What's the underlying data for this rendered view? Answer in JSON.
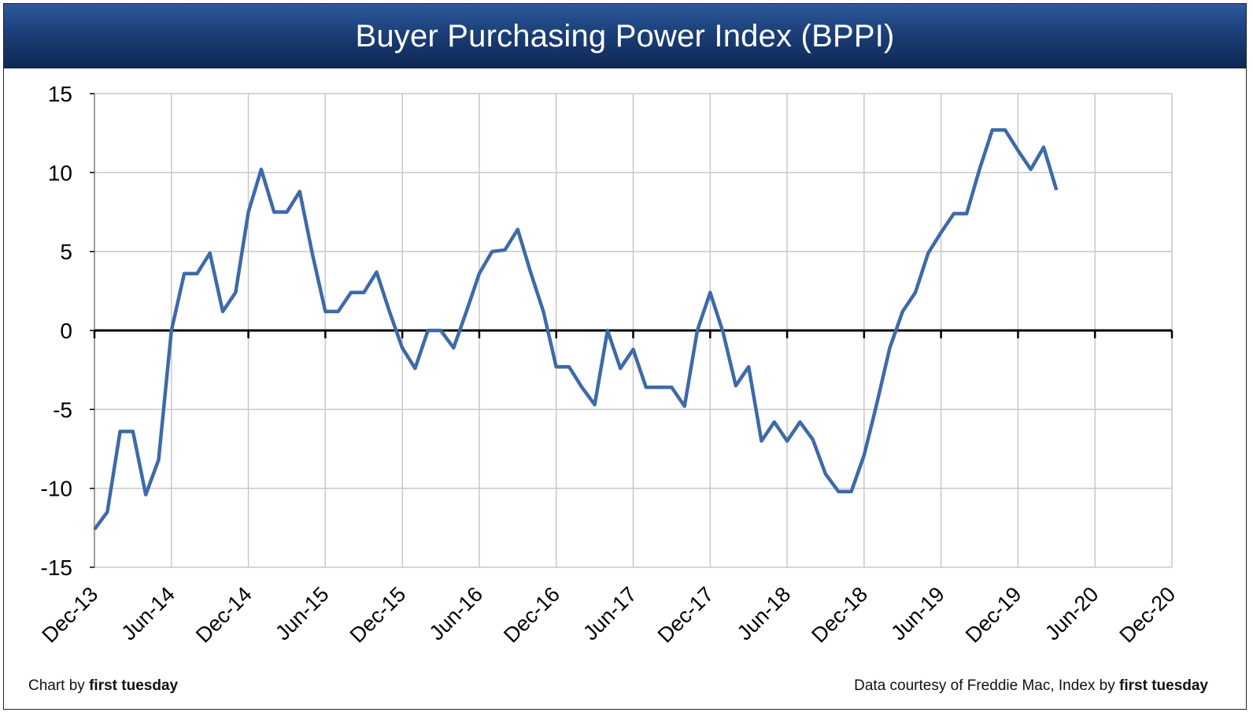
{
  "header": {
    "title": "Buyer Purchasing Power Index (BPPI)"
  },
  "footer": {
    "left_prefix": "Chart by ",
    "left_brand": "first tuesday",
    "right_prefix": "Data courtesy of Freddie Mac, Index by ",
    "right_brand": "first tuesday"
  },
  "colors": {
    "title_bar": "#1b3f78",
    "line": "#3d6aa8",
    "zero_line": "#000000",
    "grid": "#c8c8c8"
  },
  "chart_data": {
    "type": "line",
    "title": "Buyer Purchasing Power Index (BPPI)",
    "xlabel": "",
    "ylabel": "",
    "ylim": [
      -15,
      15
    ],
    "yticks": [
      15,
      10,
      5,
      0,
      -5,
      -10,
      -15
    ],
    "ytick_labels": [
      "15",
      "10",
      "5",
      "0",
      "-5",
      "-10",
      "-15"
    ],
    "xlim": [
      "2013-12",
      "2020-12"
    ],
    "xtick_labels": [
      "Dec-13",
      "Jun-14",
      "Dec-14",
      "Jun-15",
      "Dec-15",
      "Jun-16",
      "Dec-16",
      "Jun-17",
      "Dec-17",
      "Jun-18",
      "Dec-18",
      "Jun-19",
      "Dec-19",
      "Jun-20",
      "Dec-20"
    ],
    "grid": true,
    "series": [
      {
        "x": [
          "2013-12",
          "2014-01",
          "2014-02",
          "2014-03",
          "2014-04",
          "2014-05",
          "2014-06",
          "2014-07",
          "2014-08",
          "2014-09",
          "2014-10",
          "2014-11",
          "2014-12",
          "2015-01",
          "2015-02",
          "2015-03",
          "2015-04",
          "2015-05",
          "2015-06",
          "2015-07",
          "2015-08",
          "2015-09",
          "2015-10",
          "2015-11",
          "2015-12",
          "2016-01",
          "2016-02",
          "2016-03",
          "2016-04",
          "2016-05",
          "2016-06",
          "2016-07",
          "2016-08",
          "2016-09",
          "2016-10",
          "2016-11",
          "2016-12",
          "2017-01",
          "2017-02",
          "2017-03",
          "2017-04",
          "2017-05",
          "2017-06",
          "2017-07",
          "2017-08",
          "2017-09",
          "2017-10",
          "2017-11",
          "2017-12",
          "2018-01",
          "2018-02",
          "2018-03",
          "2018-04",
          "2018-05",
          "2018-06",
          "2018-07",
          "2018-08",
          "2018-09",
          "2018-10",
          "2018-11",
          "2018-12",
          "2019-01",
          "2019-02",
          "2019-03",
          "2019-04",
          "2019-05",
          "2019-06",
          "2019-07",
          "2019-08",
          "2019-09",
          "2019-10",
          "2019-11",
          "2019-12",
          "2020-01",
          "2020-02",
          "2020-03"
        ],
        "values": [
          -12.6,
          -11.5,
          -6.4,
          -6.4,
          -10.4,
          -8.2,
          0.0,
          3.6,
          3.6,
          4.9,
          1.2,
          2.4,
          7.5,
          10.2,
          7.5,
          7.5,
          8.8,
          4.8,
          1.2,
          1.2,
          2.4,
          2.4,
          3.7,
          1.2,
          -1.1,
          -2.4,
          0.0,
          0.0,
          -1.1,
          1.2,
          3.6,
          5.0,
          5.1,
          6.4,
          3.7,
          1.2,
          -2.3,
          -2.3,
          -3.6,
          -4.7,
          0.0,
          -2.4,
          -1.2,
          -3.6,
          -3.6,
          -3.6,
          -4.8,
          0.0,
          2.4,
          -0.1,
          -3.5,
          -2.3,
          -7.0,
          -5.8,
          -7.0,
          -5.8,
          -6.9,
          -9.1,
          -10.2,
          -10.2,
          -7.9,
          -4.6,
          -1.1,
          1.2,
          2.4,
          4.9,
          6.2,
          7.4,
          7.4,
          10.2,
          12.7,
          12.7,
          11.4,
          10.2,
          11.6,
          8.9
        ]
      }
    ]
  }
}
